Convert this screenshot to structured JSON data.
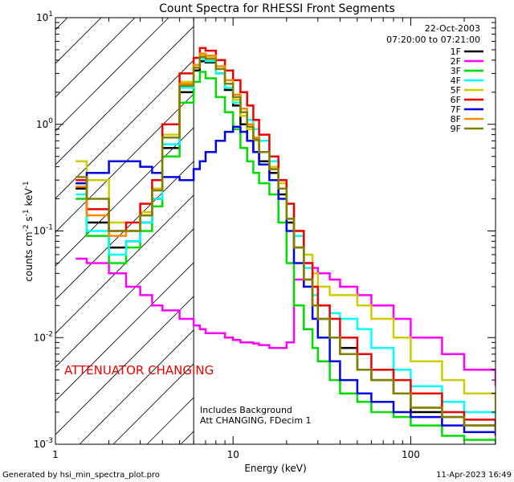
{
  "chart_data": {
    "type": "line",
    "title": "Count Spectra for RHESSI Front Segments",
    "date": "22-Oct-2003",
    "time_range": "07:20:00 to 07:21:00",
    "xlabel": "Energy (keV)",
    "ylabel_parts": {
      "main": "counts cm",
      "e1": "-2",
      "s": " s",
      "e2": "-1",
      "kev": " keV",
      "e3": "-1"
    },
    "x_scale": "log",
    "y_scale": "log",
    "xlim": [
      1,
      300
    ],
    "ylim": [
      0.001,
      10
    ],
    "x_ticks": [
      {
        "v": 1,
        "label": "1"
      },
      {
        "v": 10,
        "label": "10"
      },
      {
        "v": 100,
        "label": "100"
      }
    ],
    "y_ticks": [
      {
        "v": 10,
        "base": "10",
        "exp": "1"
      },
      {
        "v": 1,
        "base": "10",
        "exp": "0"
      },
      {
        "v": 0.1,
        "base": "10",
        "exp": "-1"
      },
      {
        "v": 0.01,
        "base": "10",
        "exp": "-2"
      },
      {
        "v": 0.001,
        "base": "10",
        "exp": "-3"
      }
    ],
    "attenuator_cut_keV": 6,
    "attenuator_label": "ATTENUATOR CHANGING",
    "notes": [
      "Includes Background",
      "Att CHANGING, FDecim 1"
    ],
    "footer_left": "Generated by hsi_min_spectra_plot.pro",
    "footer_right": "11-Apr-2023 16:49",
    "legend": [
      {
        "name": "1F",
        "color": "#000000"
      },
      {
        "name": "2F",
        "color": "#ff00ff"
      },
      {
        "name": "3F",
        "color": "#00dd00"
      },
      {
        "name": "4F",
        "color": "#00ffff"
      },
      {
        "name": "5F",
        "color": "#cccc00"
      },
      {
        "name": "6F",
        "color": "#ee0000"
      },
      {
        "name": "7F",
        "color": "#0000ee"
      },
      {
        "name": "8F",
        "color": "#ff8800"
      },
      {
        "name": "9F",
        "color": "#808000"
      }
    ],
    "series": [
      {
        "name": "1F",
        "color": "#000000",
        "x": [
          1.3,
          1.5,
          2,
          2.5,
          3,
          3.5,
          4,
          5,
          6,
          6.5,
          7,
          8,
          9,
          10,
          11,
          12,
          13,
          14,
          16,
          18,
          20,
          22,
          25,
          28,
          30,
          35,
          40,
          50,
          60,
          80,
          100,
          150,
          200,
          300
        ],
        "y": [
          0.25,
          0.12,
          0.07,
          0.08,
          0.12,
          0.2,
          0.6,
          2.0,
          3.2,
          3.9,
          3.8,
          3.0,
          2.1,
          1.5,
          1.0,
          0.7,
          0.55,
          0.45,
          0.35,
          0.22,
          0.12,
          0.07,
          0.035,
          0.02,
          0.015,
          0.01,
          0.008,
          0.005,
          0.004,
          0.003,
          0.002,
          0.0018,
          0.0015,
          0.0013
        ]
      },
      {
        "name": "2F",
        "color": "#ff00ff",
        "x": [
          1.3,
          1.5,
          2,
          2.5,
          3,
          3.5,
          4,
          5,
          6,
          6.5,
          7,
          8,
          9,
          10,
          11,
          12,
          13,
          14,
          16,
          18,
          20,
          22,
          25,
          28,
          30,
          35,
          40,
          50,
          60,
          80,
          100,
          150,
          200,
          300
        ],
        "y": [
          0.055,
          0.05,
          0.04,
          0.03,
          0.025,
          0.02,
          0.018,
          0.015,
          0.013,
          0.012,
          0.011,
          0.011,
          0.01,
          0.0095,
          0.009,
          0.009,
          0.0088,
          0.0085,
          0.008,
          0.008,
          0.009,
          0.035,
          0.05,
          0.045,
          0.04,
          0.035,
          0.03,
          0.025,
          0.02,
          0.015,
          0.01,
          0.007,
          0.005,
          0.0035
        ]
      },
      {
        "name": "3F",
        "color": "#00dd00",
        "x": [
          1.3,
          1.5,
          2,
          2.5,
          3,
          3.5,
          4,
          5,
          6,
          6.5,
          7,
          8,
          9,
          10,
          11,
          12,
          13,
          14,
          16,
          18,
          20,
          22,
          25,
          28,
          30,
          35,
          40,
          50,
          60,
          80,
          100,
          150,
          200,
          300
        ],
        "y": [
          0.2,
          0.09,
          0.05,
          0.07,
          0.1,
          0.17,
          0.5,
          1.6,
          2.5,
          3.1,
          2.7,
          1.8,
          1.3,
          0.9,
          0.6,
          0.45,
          0.35,
          0.28,
          0.22,
          0.12,
          0.05,
          0.02,
          0.012,
          0.008,
          0.006,
          0.004,
          0.003,
          0.0025,
          0.002,
          0.0018,
          0.0015,
          0.0012,
          0.0011,
          0.001
        ]
      },
      {
        "name": "4F",
        "color": "#00ffff",
        "x": [
          1.3,
          1.5,
          2,
          2.5,
          3,
          3.5,
          4,
          5,
          6,
          6.5,
          7,
          8,
          9,
          10,
          11,
          12,
          13,
          14,
          16,
          18,
          20,
          22,
          25,
          28,
          30,
          35,
          40,
          50,
          60,
          80,
          100,
          150,
          200,
          300
        ],
        "y": [
          0.22,
          0.1,
          0.06,
          0.08,
          0.12,
          0.2,
          0.65,
          2.2,
          3.4,
          4.1,
          3.9,
          3.0,
          2.2,
          1.6,
          1.3,
          1.1,
          0.9,
          0.7,
          0.45,
          0.3,
          0.18,
          0.09,
          0.045,
          0.025,
          0.02,
          0.017,
          0.015,
          0.012,
          0.008,
          0.005,
          0.0035,
          0.0025,
          0.002,
          0.0015
        ]
      },
      {
        "name": "5F",
        "color": "#cccc00",
        "x": [
          1.3,
          1.5,
          2,
          2.5,
          3,
          3.5,
          4,
          5,
          6,
          6.5,
          7,
          8,
          9,
          10,
          11,
          12,
          13,
          14,
          16,
          18,
          20,
          22,
          25,
          28,
          30,
          35,
          40,
          50,
          60,
          80,
          100,
          150,
          200,
          300
        ],
        "y": [
          0.45,
          0.3,
          0.12,
          0.1,
          0.15,
          0.25,
          0.8,
          2.5,
          3.6,
          4.5,
          4.2,
          3.3,
          2.4,
          1.7,
          1.2,
          0.9,
          0.7,
          0.55,
          0.4,
          0.28,
          0.18,
          0.1,
          0.06,
          0.04,
          0.03,
          0.025,
          0.025,
          0.02,
          0.015,
          0.01,
          0.006,
          0.004,
          0.003,
          0.002
        ]
      },
      {
        "name": "6F",
        "color": "#ee0000",
        "x": [
          1.3,
          1.5,
          2,
          2.5,
          3,
          3.5,
          4,
          5,
          6,
          6.5,
          7,
          8,
          9,
          10,
          11,
          12,
          13,
          14,
          16,
          18,
          20,
          22,
          25,
          28,
          30,
          35,
          40,
          50,
          60,
          80,
          100,
          150,
          200,
          300
        ],
        "y": [
          0.3,
          0.16,
          0.1,
          0.12,
          0.18,
          0.3,
          1.0,
          3.0,
          4.2,
          5.2,
          4.9,
          4.0,
          3.2,
          2.6,
          2.0,
          1.5,
          1.1,
          0.8,
          0.5,
          0.3,
          0.18,
          0.1,
          0.05,
          0.03,
          0.02,
          0.015,
          0.01,
          0.007,
          0.005,
          0.004,
          0.003,
          0.002,
          0.0017,
          0.0014
        ]
      },
      {
        "name": "7F",
        "color": "#0000ee",
        "x": [
          1.3,
          1.5,
          2,
          2.5,
          3,
          3.5,
          4,
          5,
          6,
          6.5,
          7,
          8,
          9,
          10,
          11,
          12,
          13,
          14,
          16,
          18,
          20,
          22,
          25,
          28,
          30,
          35,
          40,
          50,
          60,
          80,
          100,
          150,
          200,
          300
        ],
        "y": [
          0.28,
          0.35,
          0.45,
          0.45,
          0.4,
          0.35,
          0.32,
          0.3,
          0.38,
          0.45,
          0.55,
          0.7,
          0.85,
          0.95,
          0.85,
          0.7,
          0.55,
          0.42,
          0.3,
          0.2,
          0.1,
          0.05,
          0.03,
          0.015,
          0.01,
          0.006,
          0.004,
          0.003,
          0.0025,
          0.002,
          0.0018,
          0.0015,
          0.0013,
          0.0012
        ]
      },
      {
        "name": "8F",
        "color": "#ff8800",
        "x": [
          1.3,
          1.5,
          2,
          2.5,
          3,
          3.5,
          4,
          5,
          6,
          6.5,
          7,
          8,
          9,
          10,
          11,
          12,
          13,
          14,
          16,
          18,
          20,
          22,
          25,
          28,
          30,
          35,
          40,
          50,
          60,
          80,
          100,
          150,
          200,
          300
        ],
        "y": [
          0.26,
          0.14,
          0.09,
          0.1,
          0.14,
          0.24,
          0.75,
          2.4,
          3.6,
          4.6,
          4.4,
          3.5,
          2.6,
          1.9,
          1.4,
          1.0,
          0.75,
          0.55,
          0.38,
          0.25,
          0.13,
          0.07,
          0.035,
          0.02,
          0.015,
          0.01,
          0.007,
          0.005,
          0.004,
          0.003,
          0.0022,
          0.0018,
          0.0015,
          0.0013
        ]
      },
      {
        "name": "9F",
        "color": "#808000",
        "x": [
          1.3,
          1.5,
          2,
          2.5,
          3,
          3.5,
          4,
          5,
          6,
          6.5,
          7,
          8,
          9,
          10,
          11,
          12,
          13,
          14,
          16,
          18,
          20,
          22,
          25,
          28,
          30,
          35,
          40,
          50,
          60,
          80,
          100,
          150,
          200,
          300
        ],
        "y": [
          0.32,
          0.2,
          0.1,
          0.1,
          0.14,
          0.24,
          0.75,
          2.3,
          3.4,
          4.3,
          4.1,
          3.3,
          2.4,
          1.8,
          1.3,
          0.95,
          0.72,
          0.55,
          0.38,
          0.25,
          0.13,
          0.07,
          0.035,
          0.02,
          0.015,
          0.01,
          0.007,
          0.005,
          0.004,
          0.003,
          0.0022,
          0.0018,
          0.0015,
          0.0013
        ]
      }
    ]
  }
}
